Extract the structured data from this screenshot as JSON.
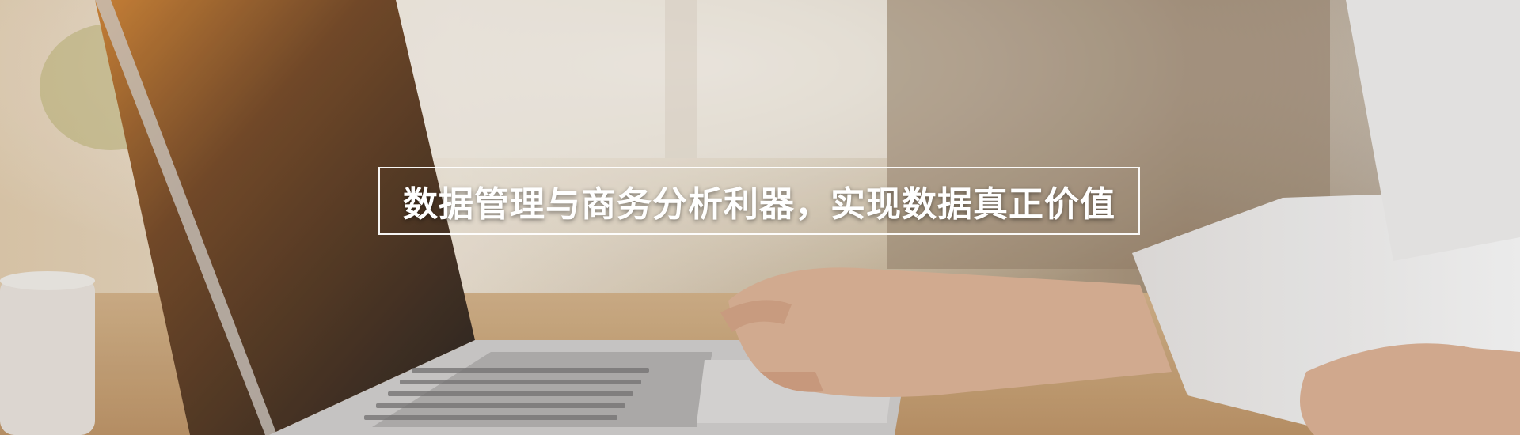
{
  "banner": {
    "headline": "数据管理与商务分析利器，实现数据真正价值"
  },
  "colors": {
    "overlay_text": "#ffffff",
    "frame": "#ffffff"
  },
  "icons": {
    "hero_image": "laptop-typing-photo"
  }
}
